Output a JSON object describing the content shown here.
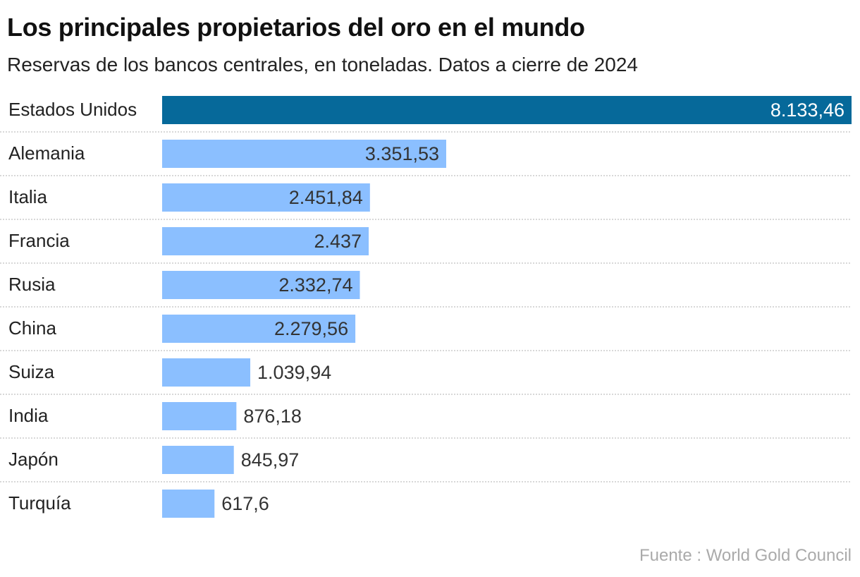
{
  "chart_data": {
    "type": "bar",
    "orientation": "horizontal",
    "title": "Los principales propietarios del oro en el mundo",
    "subtitle": "Reservas de los bancos centrales, en toneladas. Datos a cierre de 2024",
    "categories": [
      "Estados Unidos",
      "Alemania",
      "Italia",
      "Francia",
      "Rusia",
      "China",
      "Suiza",
      "India",
      "Japón",
      "Turquía"
    ],
    "values": [
      8133.46,
      3351.53,
      2451.84,
      2437,
      2332.74,
      2279.56,
      1039.94,
      876.18,
      845.97,
      617.6
    ],
    "value_labels": [
      "8.133,46",
      "3.351,53",
      "2.451,84",
      "2.437",
      "2.332,74",
      "2.279,56",
      "1.039,94",
      "876,18",
      "845,97",
      "617,6"
    ],
    "xlim": [
      0,
      8133.46
    ],
    "grid": false,
    "colors": {
      "highlight": "#06699a",
      "default": "#8bbfff",
      "separator": "#cccccc"
    },
    "source": "Fuente : World Gold Council"
  }
}
